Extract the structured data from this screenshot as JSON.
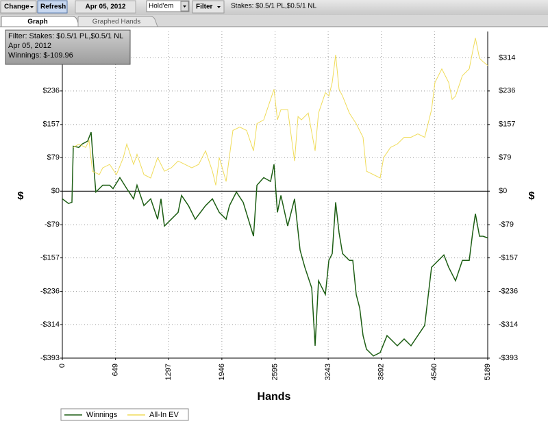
{
  "toolbar": {
    "change": "Change",
    "refresh": "Refresh",
    "date": "Apr 05, 2012",
    "game": "Hold'em",
    "filter": "Filter",
    "stakes": "Stakes: $0.5/1 PL,$0.5/1 NL"
  },
  "tabs": [
    "Graph",
    "Graphed Hands"
  ],
  "tooltip": {
    "lines": [
      "Filter: Stakes: $0.5/1 PL,$0.5/1 NL",
      "Apr 05, 2012",
      "Winnings: $-109.96"
    ]
  },
  "chart_data": {
    "type": "line",
    "x_label": "Hands",
    "y_label": "$",
    "xlim": [
      0,
      5189
    ],
    "xticks": [
      0,
      649,
      1297,
      1946,
      2595,
      3243,
      3892,
      4540,
      5189
    ],
    "ylim": [
      -393,
      376
    ],
    "yticks": [
      {
        "value": -393,
        "label": "-$393"
      },
      {
        "value": -314,
        "label": "-$314"
      },
      {
        "value": -236,
        "label": "-$236"
      },
      {
        "value": -157,
        "label": "-$157"
      },
      {
        "value": -79,
        "label": "-$79"
      },
      {
        "value": 0,
        "label": "$0"
      },
      {
        "value": 79,
        "label": "$79"
      },
      {
        "value": 157,
        "label": "$157"
      },
      {
        "value": 236,
        "label": "$236"
      },
      {
        "value": 314,
        "label": "$314"
      }
    ],
    "grid": true,
    "legend": "bottom-left",
    "series": [
      {
        "name": "Winnings",
        "color": "#1d5e14",
        "x": [
          0,
          75,
          117,
          134,
          201,
          242,
          309,
          351,
          368,
          409,
          493,
          577,
          618,
          702,
          786,
          869,
          911,
          995,
          1078,
          1162,
          1203,
          1245,
          1329,
          1412,
          1454,
          1538,
          1621,
          1747,
          1831,
          1914,
          1998,
          2039,
          2123,
          2206,
          2332,
          2374,
          2457,
          2540,
          2582,
          2624,
          2666,
          2749,
          2833,
          2900,
          2958,
          3042,
          3083,
          3125,
          3209,
          3251,
          3292,
          3334,
          3376,
          3418,
          3501,
          3543,
          3585,
          3627,
          3668,
          3710,
          3794,
          3877,
          3961,
          4044,
          4086,
          4170,
          4253,
          4337,
          4420,
          4504,
          4587,
          4654,
          4713,
          4796,
          4880,
          4963,
          5005,
          5039,
          5089,
          5131,
          5189
        ],
        "values": [
          -18,
          -29,
          -26,
          106,
          103,
          111,
          118,
          139,
          95,
          -2,
          14,
          14,
          6,
          32,
          6,
          -18,
          14,
          -34,
          -18,
          -66,
          -18,
          -82,
          -66,
          -50,
          -10,
          -34,
          -66,
          -34,
          -18,
          -50,
          -66,
          -34,
          -2,
          -26,
          -106,
          14,
          32,
          23,
          63,
          -50,
          -10,
          -82,
          -18,
          -139,
          -179,
          -228,
          -364,
          -211,
          -243,
          -163,
          -147,
          -26,
          -98,
          -147,
          -163,
          -163,
          -243,
          -275,
          -340,
          -372,
          -388,
          -380,
          -340,
          -356,
          -364,
          -348,
          -364,
          -340,
          -316,
          -179,
          -163,
          -150,
          -179,
          -211,
          -163,
          -163,
          -98,
          -53,
          -106,
          -106,
          -110
        ]
      },
      {
        "name": "All-In EV",
        "color": "#f0dc5a",
        "x": [
          134,
          201,
          284,
          326,
          368,
          451,
          493,
          577,
          660,
          744,
          786,
          869,
          911,
          995,
          1078,
          1162,
          1245,
          1329,
          1412,
          1496,
          1579,
          1663,
          1747,
          1831,
          1872,
          1914,
          1998,
          2081,
          2164,
          2248,
          2332,
          2374,
          2457,
          2540,
          2582,
          2624,
          2666,
          2749,
          2833,
          2875,
          2916,
          3000,
          3083,
          3125,
          3209,
          3251,
          3292,
          3334,
          3376,
          3418,
          3501,
          3585,
          3668,
          3710,
          3794,
          3877,
          3919,
          4003,
          4086,
          4170,
          4253,
          4337,
          4420,
          4504,
          4546,
          4587,
          4629,
          4713,
          4755,
          4796,
          4880,
          4963,
          5005,
          5039,
          5089,
          5131,
          5189
        ],
        "values": [
          103,
          111,
          103,
          119,
          47,
          39,
          55,
          63,
          39,
          79,
          111,
          63,
          87,
          39,
          31,
          79,
          47,
          55,
          71,
          63,
          55,
          63,
          95,
          47,
          14,
          79,
          23,
          143,
          151,
          143,
          95,
          159,
          168,
          216,
          240,
          168,
          192,
          192,
          71,
          176,
          168,
          184,
          95,
          184,
          232,
          224,
          256,
          321,
          240,
          224,
          184,
          159,
          127,
          47,
          39,
          31,
          79,
          103,
          111,
          127,
          127,
          135,
          127,
          192,
          256,
          272,
          288,
          256,
          216,
          224,
          272,
          288,
          329,
          361,
          313,
          305,
          296
        ]
      }
    ]
  }
}
